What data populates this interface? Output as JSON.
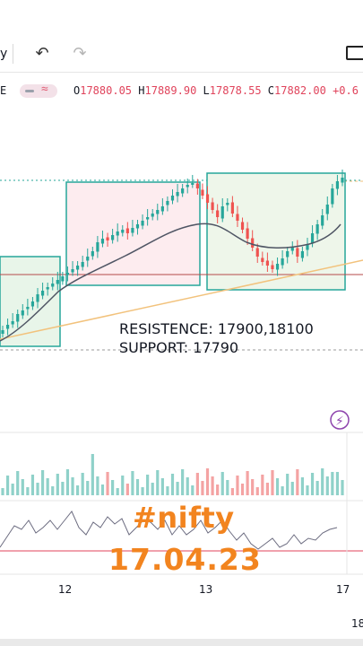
{
  "toolbar": {
    "partial_label": "y",
    "undo_icon": "undo-icon",
    "redo_icon": "redo-icon",
    "fullscreen_icon": "fullscreen-icon"
  },
  "legend": {
    "prefix": "E",
    "open_label": "O",
    "open": "17880.05",
    "high_label": "H",
    "high": "17889.90",
    "low_label": "L",
    "low": "17878.55",
    "close_label": "C",
    "close": "17882.00",
    "change": "+0.6"
  },
  "annotations": {
    "resistance": "RESISTENCE: 17900,18100",
    "support": "SUPPORT: 17790"
  },
  "overlay": {
    "hashtag": "#nifty",
    "date": "17.04.23"
  },
  "x_axis": {
    "labels": [
      "12",
      "13",
      "17"
    ],
    "next_label": "18"
  },
  "colors": {
    "up": "#26a69a",
    "down": "#ef5350",
    "box_border": "#26a69a",
    "box_fill_green": "#e8f5e9",
    "box_fill_red": "#fdecef",
    "ma_line": "#4f5564",
    "trend_line": "#f2c27c",
    "resistance_line": "#b54a4a",
    "accent_orange": "#f2841f",
    "alert_purple": "#8e44ad"
  }
}
